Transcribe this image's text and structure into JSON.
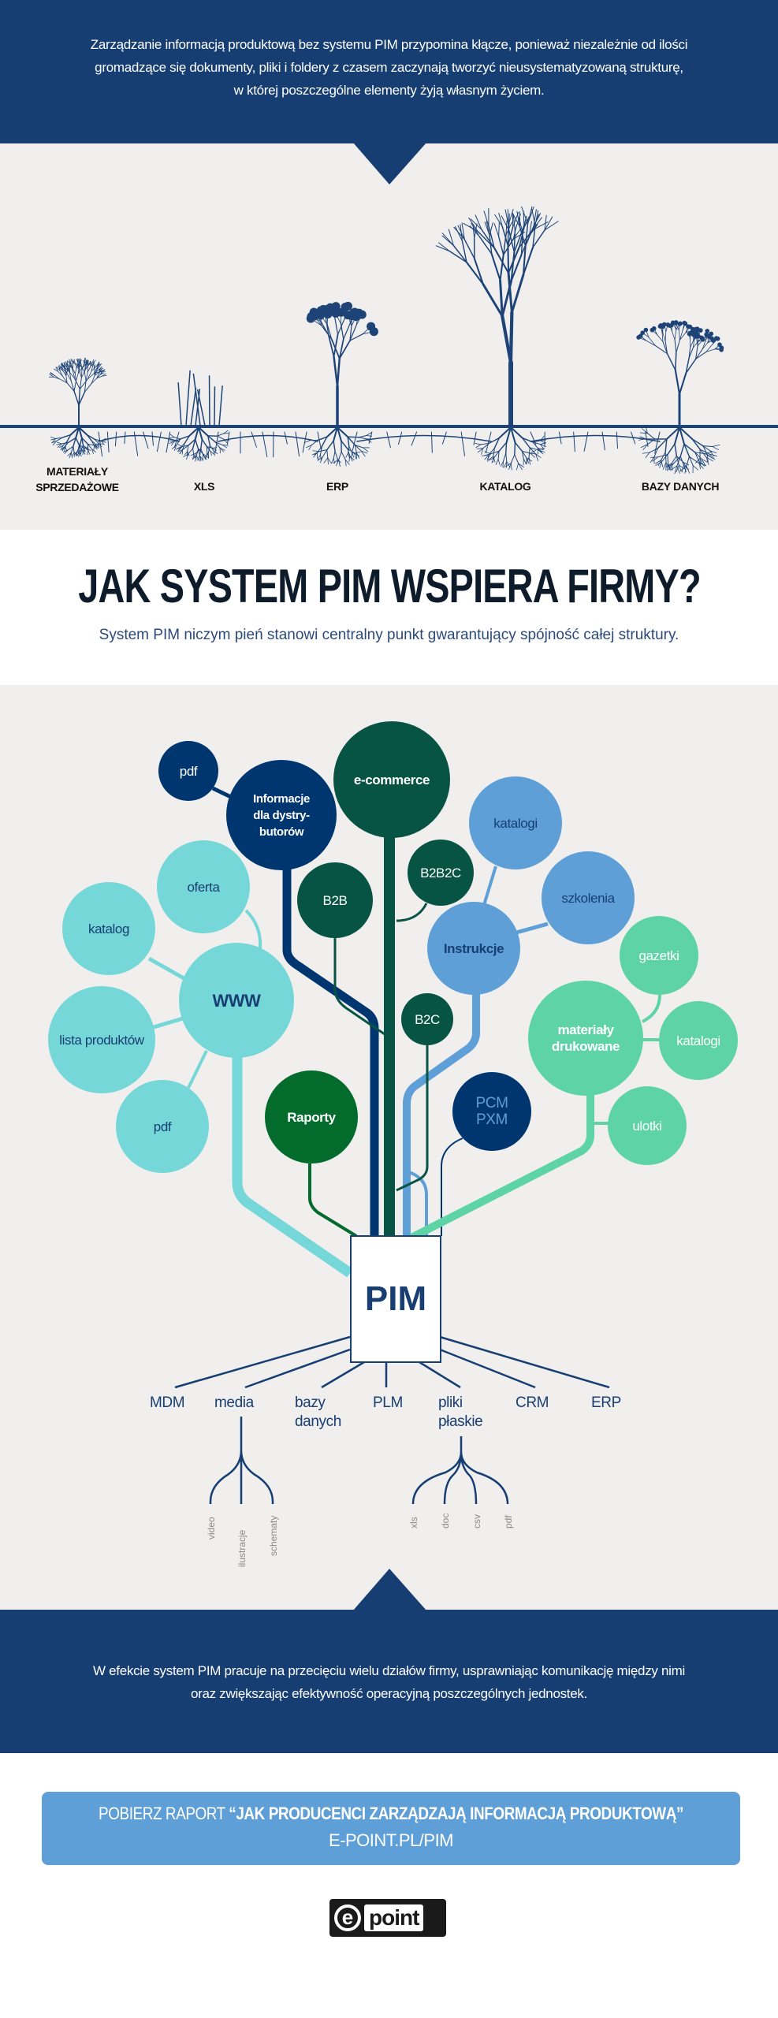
{
  "header": {
    "lines": [
      "Zarządzanie informacją produktową bez systemu PIM przypomina kłącze, ponieważ niezależnie od ilości",
      "gromadzące się dokumenty, pliki i foldery z czasem zaczynają tworzyć nieusystematyzowaną strukturę,",
      "w której poszczególne elementy żyją własnym życiem."
    ]
  },
  "plants": [
    {
      "label_1": "MATERIAŁY",
      "label_2": "SPRZEDAŻOWE",
      "style": "bush"
    },
    {
      "label_1": "XLS",
      "style": "grass"
    },
    {
      "label_1": "ERP",
      "style": "berries"
    },
    {
      "label_1": "KATALOG",
      "style": "tree"
    },
    {
      "label_1": "BAZY DANYCH",
      "style": "dots"
    }
  ],
  "section": {
    "title": "JAK SYSTEM PIM WSPIERA FIRMY?",
    "subtitle": "System PIM niczym pień stanowi centralny punkt gwarantujący spójność całej struktury."
  },
  "colors": {
    "navy": "#173e72",
    "navy_circle": "#003670",
    "teal": "#76d7d8",
    "light_blue": "#5e9fd8",
    "mint": "#5ed4a6",
    "dark_green": "#075444",
    "green": "#036b2b",
    "background": "#f0efed"
  },
  "tree": {
    "nodes": [
      {
        "label": "pdf"
      },
      {
        "label": "Informacje dla dystry- butorów"
      },
      {
        "label": "e-commerce"
      },
      {
        "label": "B2B"
      },
      {
        "label": "B2B2C"
      },
      {
        "label": "katalogi"
      },
      {
        "label": "szkolenia"
      },
      {
        "label": "Instrukcje"
      },
      {
        "label": "oferta"
      },
      {
        "label": "katalog"
      },
      {
        "label": "WWW"
      },
      {
        "label": "lista produktów"
      },
      {
        "label": "pdf"
      },
      {
        "label": "gazetki"
      },
      {
        "label": "materiały drukowane"
      },
      {
        "label": "katalogi"
      },
      {
        "label": "ulotki"
      },
      {
        "label": "B2C"
      },
      {
        "label": "Raporty"
      },
      {
        "label": "PCM PXM"
      }
    ],
    "root": "PIM",
    "systems": [
      "MDM",
      "media",
      "bazy danych",
      "PLM",
      "pliki płaskie",
      "CRM",
      "ERP"
    ],
    "media_items": [
      "video",
      "ilustracje",
      "schematy"
    ],
    "file_items": [
      "xls",
      "doc",
      "csv",
      "pdf"
    ]
  },
  "footer": {
    "lines": [
      "W efekcie system PIM pracuje na przecięciu wielu działów firmy, usprawniając komunikację między nimi",
      "oraz zwiększając efektywność operacyjną poszczególnych jednostek."
    ]
  },
  "cta": {
    "prefix": "POBIERZ RAPORT ",
    "report_title": "“JAK PRODUCENCI ZARZĄDZAJĄ INFORMACJĄ PRODUKTOWĄ”",
    "url": "E-POINT.PL/PIM"
  },
  "logo": {
    "text_e": "e",
    "text_rest": "point"
  }
}
